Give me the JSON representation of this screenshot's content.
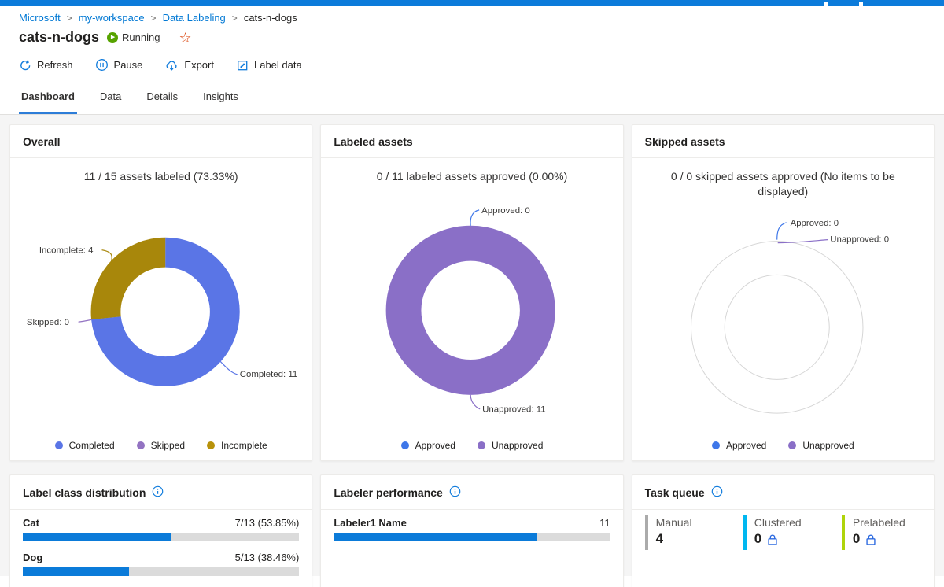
{
  "colors": {
    "topbar": "#0C7BDA",
    "link_blue": "#0078D4",
    "running_green": "#57A300",
    "star_orange": "#D83B01",
    "progress_blue": "#0B7BD9",
    "track_gray": "#DBDBDB",
    "tab_underline": "#2D7DD8"
  },
  "breadcrumb": {
    "separator": ">",
    "items": [
      "Microsoft",
      "my-workspace",
      "Data Labeling",
      "cats-n-dogs"
    ]
  },
  "header": {
    "title": "cats-n-dogs",
    "status_label": "Running"
  },
  "toolbar": {
    "items": [
      {
        "label": "Refresh",
        "icon": "refresh-icon"
      },
      {
        "label": "Pause",
        "icon": "pause-icon"
      },
      {
        "label": "Export",
        "icon": "export-icon"
      },
      {
        "label": "Label data",
        "icon": "label-data-icon"
      }
    ]
  },
  "tabs": {
    "items": [
      {
        "label": "Dashboard",
        "active": true
      },
      {
        "label": "Data",
        "active": false
      },
      {
        "label": "Details",
        "active": false
      },
      {
        "label": "Insights",
        "active": false
      }
    ]
  },
  "cards": {
    "overall": {
      "title": "Overall",
      "subtitle": "11 / 15 assets labeled (73.33%)",
      "donut": {
        "type": "donut",
        "segments": [
          {
            "label": "Completed",
            "value": 11,
            "color": "#5A75E6"
          },
          {
            "label": "Skipped",
            "value": 0,
            "color": "#9373C2"
          },
          {
            "label": "Incomplete",
            "value": 4,
            "color": "#A8870B"
          }
        ]
      },
      "callouts": [
        "Incomplete: 4",
        "Skipped: 0",
        "Completed: 11"
      ],
      "legend": [
        {
          "label": "Completed",
          "color": "#5A75E6"
        },
        {
          "label": "Skipped",
          "color": "#9373C2"
        },
        {
          "label": "Incomplete",
          "color": "#B8920A"
        }
      ]
    },
    "labeled": {
      "title": "Labeled assets",
      "subtitle": "0 / 11 labeled assets approved (0.00%)",
      "donut": {
        "type": "donut",
        "segments": [
          {
            "label": "Approved",
            "value": 0,
            "color": "#3E77E9"
          },
          {
            "label": "Unapproved",
            "value": 11,
            "color": "#8A6FC7"
          }
        ]
      },
      "callouts": [
        "Approved: 0",
        "Unapproved: 11"
      ],
      "legend": [
        {
          "label": "Approved",
          "color": "#3E77E9"
        },
        {
          "label": "Unapproved",
          "color": "#8A6FC7"
        }
      ]
    },
    "skipped": {
      "title": "Skipped assets",
      "subtitle": "0 / 0 skipped assets approved (No items to be displayed)",
      "donut": {
        "type": "donut",
        "segments": [
          {
            "label": "Approved",
            "value": 0,
            "color": "#3E77E9"
          },
          {
            "label": "Unapproved",
            "value": 0,
            "color": "#8A6FC7"
          }
        ]
      },
      "ring_color": "#D6D6D6",
      "callouts": [
        "Approved: 0",
        "Unapproved: 0"
      ],
      "legend": [
        {
          "label": "Approved",
          "color": "#3E77E9"
        },
        {
          "label": "Unapproved",
          "color": "#8A6FC7"
        }
      ]
    },
    "label_class": {
      "title": "Label class distribution",
      "info_icon": "info-icon",
      "rows": [
        {
          "label": "Cat",
          "value": "7/13 (53.85%)",
          "pct": 53.85
        },
        {
          "label": "Dog",
          "value": "5/13 (38.46%)",
          "pct": 38.46
        }
      ]
    },
    "labeler_performance": {
      "title": "Labeler performance",
      "info_icon": "info-icon",
      "rows": [
        {
          "label": "Labeler1 Name",
          "value": "11",
          "pct": 73.33
        }
      ]
    },
    "task_queue": {
      "title": "Task queue",
      "info_icon": "info-icon",
      "tiles": [
        {
          "label": "Manual",
          "value": "4",
          "locked": false,
          "color": "#ABABAB"
        },
        {
          "label": "Clustered",
          "value": "0",
          "locked": true,
          "color": "#00B7F0"
        },
        {
          "label": "Prelabeled",
          "value": "0",
          "locked": true,
          "color": "#AFD40A"
        }
      ]
    }
  }
}
